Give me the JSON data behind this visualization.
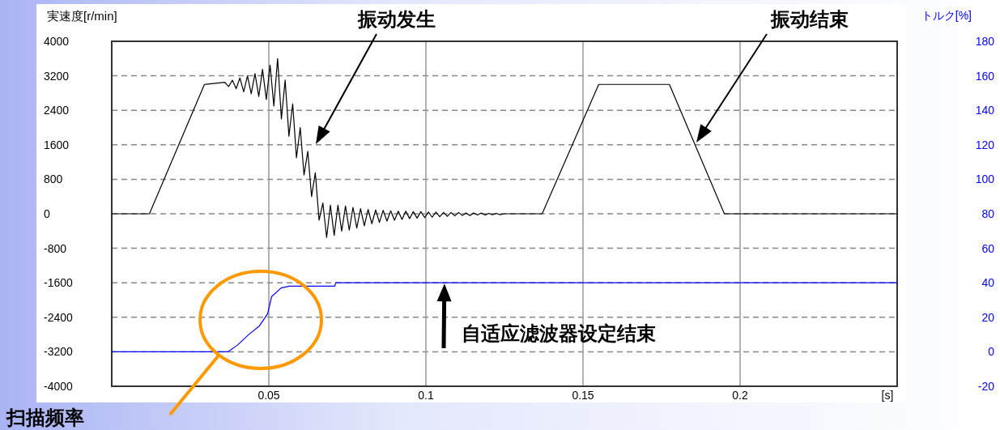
{
  "chart_data": {
    "type": "line",
    "ylabel": "実速度[r/min]",
    "y2label": "トルク[%]",
    "xlabel": "[s]",
    "xlim": [
      0,
      0.25
    ],
    "xticks": [
      0.05,
      0.1,
      0.15,
      0.2
    ],
    "ylim": [
      -4000,
      4000
    ],
    "yticks": [
      -4000,
      -3200,
      -2400,
      -1600,
      -800,
      0,
      800,
      1600,
      2400,
      3200,
      4000
    ],
    "y2lim": [
      -20,
      180
    ],
    "y2ticks": [
      -20,
      0,
      20,
      40,
      60,
      80,
      100,
      120,
      140,
      160,
      180
    ],
    "grid": true,
    "series": [
      {
        "color": "#000000",
        "x": [
          0,
          0.012,
          0.0295,
          0.036,
          0.0372,
          0.0384,
          0.0396,
          0.0408,
          0.042,
          0.0432,
          0.0444,
          0.0456,
          0.0468,
          0.048,
          0.0492,
          0.0504,
          0.0516,
          0.0528,
          0.054,
          0.0552,
          0.0564,
          0.0576,
          0.0588,
          0.06,
          0.0612,
          0.0624,
          0.0636,
          0.0648,
          0.066,
          0.0672,
          0.0684,
          0.0696,
          0.0708,
          0.072,
          0.0732,
          0.0744,
          0.0756,
          0.0768,
          0.078,
          0.0792,
          0.0804,
          0.0816,
          0.0828,
          0.084,
          0.0852,
          0.0864,
          0.0876,
          0.0888,
          0.09,
          0.0912,
          0.0924,
          0.0936,
          0.0948,
          0.096,
          0.0972,
          0.0984,
          0.0996,
          0.1008,
          0.102,
          0.1032,
          0.1044,
          0.1056,
          0.1068,
          0.108,
          0.1092,
          0.1104,
          0.1116,
          0.1128,
          0.114,
          0.1152,
          0.1164,
          0.1176,
          0.1188,
          0.12,
          0.1212,
          0.1224,
          0.1236,
          0.1248,
          0.137,
          0.155,
          0.1775,
          0.195,
          0.25
        ],
        "values": [
          0,
          0,
          3000,
          3050,
          2950,
          3100,
          2900,
          3150,
          2830,
          3200,
          2780,
          3250,
          2720,
          3350,
          2650,
          3450,
          2500,
          3600,
          2200,
          3100,
          1800,
          2550,
          1300,
          2000,
          900,
          1450,
          400,
          950,
          -150,
          250,
          -550,
          200,
          -500,
          200,
          -400,
          180,
          -380,
          150,
          -330,
          120,
          -280,
          100,
          -230,
          90,
          -200,
          80,
          -170,
          70,
          -150,
          60,
          -130,
          60,
          -110,
          50,
          -100,
          50,
          -90,
          40,
          -80,
          40,
          -70,
          30,
          -60,
          30,
          -50,
          30,
          -40,
          20,
          -40,
          20,
          -30,
          20,
          -30,
          10,
          -20,
          10,
          -20,
          0,
          0,
          3000,
          3000,
          0,
          0
        ]
      },
      {
        "color": "#0000ff",
        "axis": "y2",
        "x": [
          0,
          0.037,
          0.0401,
          0.0436,
          0.047,
          0.0496,
          0.0509,
          0.0539,
          0.0565,
          0.071,
          0.0713,
          0.25
        ],
        "values": [
          0,
          0,
          4,
          10,
          15,
          22,
          32,
          37,
          38,
          38,
          40,
          40
        ]
      }
    ],
    "annotations": [
      "振动发生",
      "振动结束",
      {
        "text": "自适应滤波器设定结束",
        "x": 0.1059,
        "y": -1600
      },
      "扫描频率"
    ]
  }
}
